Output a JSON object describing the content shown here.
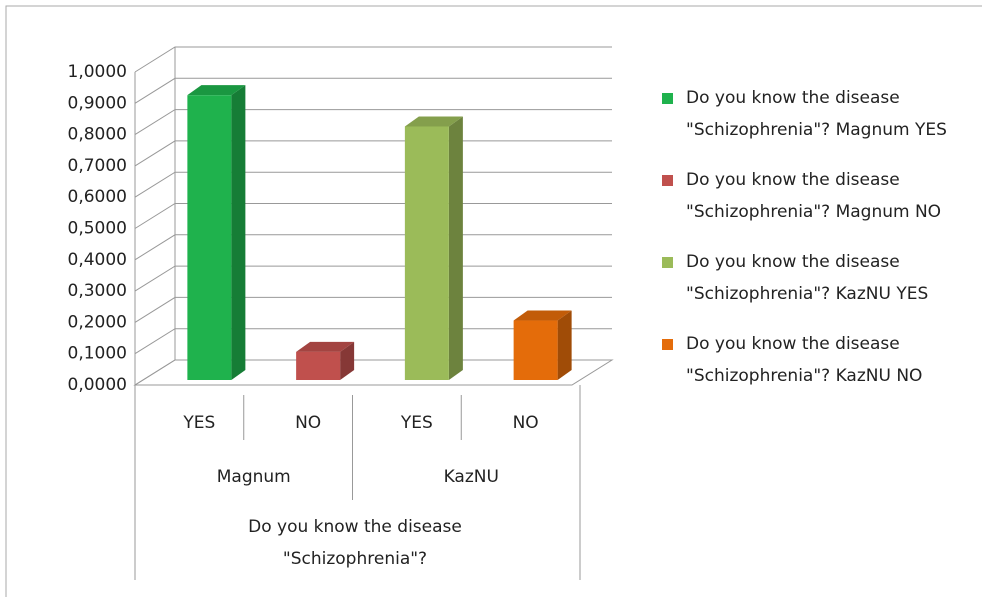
{
  "chart_data": {
    "type": "bar3d",
    "categories": [
      "YES",
      "NO",
      "YES",
      "NO"
    ],
    "category_groups": [
      "Magnum",
      "KazNU"
    ],
    "x_label": "Do you know the disease \"Schizophrenia\"?",
    "series": [
      {
        "name": "Do you know the disease \"Schizophrenia\"? Magnum YES",
        "color": "#1fb24d",
        "values": [
          0.91,
          null,
          null,
          null
        ]
      },
      {
        "name": "Do you know the disease \"Schizophrenia\"? Magnum NO",
        "color": "#c0504d",
        "values": [
          null,
          0.09,
          null,
          null
        ]
      },
      {
        "name": "Do you know the disease \"Schizophrenia\"? KazNU YES",
        "color": "#9bbb59",
        "values": [
          null,
          null,
          0.81,
          null
        ]
      },
      {
        "name": "Do you know the disease \"Schizophrenia\"? KazNU NO",
        "color": "#e46c0a",
        "values": [
          null,
          null,
          null,
          0.19
        ]
      }
    ],
    "ylim": [
      0,
      1
    ],
    "yticks": [
      {
        "value": 0,
        "label": "0,0000"
      },
      {
        "value": 0.1,
        "label": "0,1000"
      },
      {
        "value": 0.2,
        "label": "0,2000"
      },
      {
        "value": 0.3,
        "label": "0,3000"
      },
      {
        "value": 0.4,
        "label": "0,4000"
      },
      {
        "value": 0.5,
        "label": "0,5000"
      },
      {
        "value": 0.6,
        "label": "0,6000"
      },
      {
        "value": 0.7,
        "label": "0,7000"
      },
      {
        "value": 0.8,
        "label": "0,8000"
      },
      {
        "value": 0.9,
        "label": "0,9000"
      },
      {
        "value": 1,
        "label": "1,0000"
      }
    ],
    "grid": true,
    "legend": "right"
  }
}
